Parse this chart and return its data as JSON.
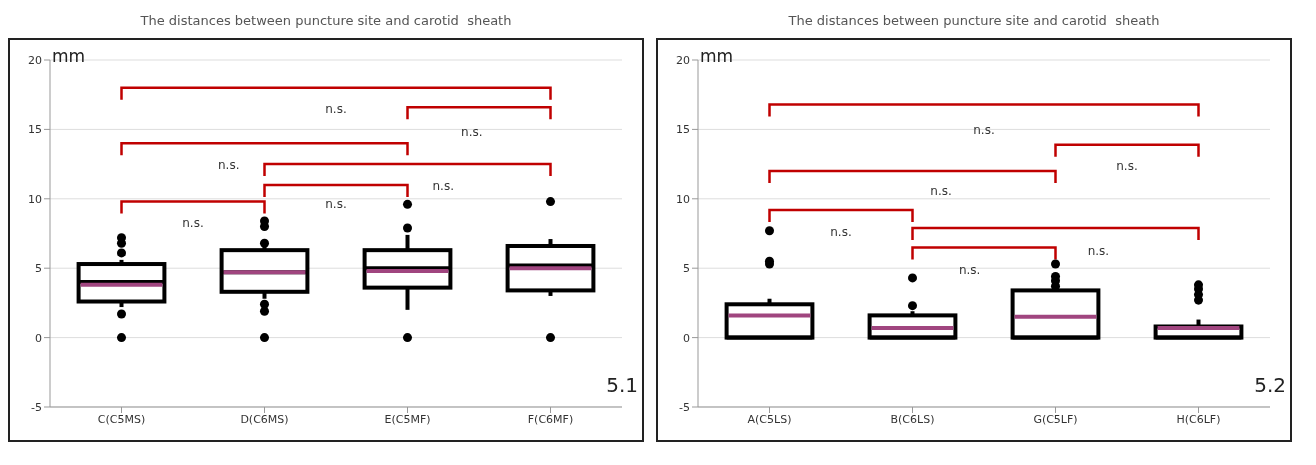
{
  "chart_data": [
    {
      "type": "box",
      "title": "The distances between puncture site and carotid  sheath",
      "ylabel": "mm",
      "categories": [
        "C(C5MS)",
        "D(C6MS)",
        "E(C5MF)",
        "F(C6MF)"
      ],
      "ylim": [
        -5,
        20
      ],
      "yticks": [
        -5,
        0,
        5,
        10,
        15,
        20
      ],
      "grid": "y",
      "legend": false,
      "series": [
        {
          "color": "#000000",
          "boxes": [
            {
              "low": 2.2,
              "q1": 2.6,
              "median": 4.0,
              "q3": 5.3,
              "high": 5.6,
              "mean": 3.8,
              "outliers": [
                1.7,
                0,
                6.1,
                6.8,
                7.2
              ]
            },
            {
              "low": 2.8,
              "q1": 3.3,
              "median": 4.7,
              "q3": 6.3,
              "high": 6.6,
              "mean": 4.7,
              "outliers": [
                2.4,
                1.9,
                0,
                6.8,
                8.0,
                8.4
              ]
            },
            {
              "low": 2.0,
              "q1": 3.6,
              "median": 5.0,
              "q3": 6.3,
              "high": 7.4,
              "mean": 4.8,
              "outliers": [
                0,
                7.9,
                9.6
              ]
            },
            {
              "low": 3.0,
              "q1": 3.4,
              "median": 5.2,
              "q3": 6.6,
              "high": 7.1,
              "mean": 5.0,
              "outliers": [
                0,
                9.8
              ]
            }
          ]
        }
      ],
      "annotations": [
        "n.s.",
        "n.s.",
        "n.s.",
        "n.s.",
        "n.s.",
        "n.s.",
        "5.1"
      ]
    },
    {
      "type": "box",
      "title": "The distances between puncture site and carotid  sheath",
      "ylabel": "mm",
      "categories": [
        "A(C5LS)",
        "B(C6LS)",
        "G(C5LF)",
        "H(C6LF)"
      ],
      "ylim": [
        -5,
        20
      ],
      "yticks": [
        -5,
        0,
        5,
        10,
        15,
        20
      ],
      "grid": "y",
      "legend": false,
      "series": [
        {
          "color": "#000000",
          "boxes": [
            {
              "low": 0,
              "q1": 0,
              "median": 0,
              "q3": 2.4,
              "high": 2.8,
              "mean": 1.6,
              "outliers": [
                5.3,
                5.5,
                7.7
              ]
            },
            {
              "low": 0,
              "q1": 0,
              "median": 0,
              "q3": 1.6,
              "high": 1.9,
              "mean": 0.7,
              "outliers": [
                2.3,
                4.3
              ]
            },
            {
              "low": 0,
              "q1": 0,
              "median": 0,
              "q3": 3.4,
              "high": 3.4,
              "mean": 1.5,
              "outliers": [
                3.7,
                4.1,
                4.4,
                5.3
              ]
            },
            {
              "low": 0,
              "q1": 0,
              "median": 0,
              "q3": 0.8,
              "high": 1.3,
              "mean": 0.7,
              "outliers": [
                2.7,
                3.1,
                3.5,
                3.8
              ]
            }
          ]
        }
      ],
      "annotations": [
        "n.s.",
        "n.s.",
        "n.s.",
        "n.s.",
        "n.s.",
        "n.s.",
        "5.2"
      ]
    }
  ]
}
